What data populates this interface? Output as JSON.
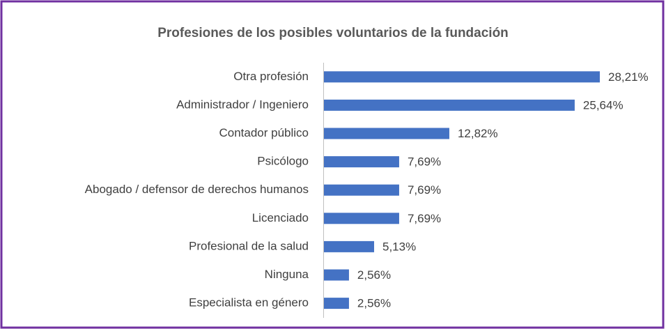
{
  "chart_data": {
    "type": "bar",
    "orientation": "horizontal",
    "title": "Profesiones de los posibles voluntarios de la fundación",
    "categories": [
      "Otra profesión",
      "Administrador / Ingeniero",
      "Contador público",
      "Psicólogo",
      "Abogado / defensor de derechos humanos",
      "Licenciado",
      "Profesional de la salud",
      "Ninguna",
      "Especialista en género"
    ],
    "values": [
      28.21,
      25.64,
      12.82,
      7.69,
      7.69,
      7.69,
      5.13,
      2.56,
      2.56
    ],
    "value_labels": [
      "28,21%",
      "25,64%",
      "12,82%",
      "7,69%",
      "7,69%",
      "7,69%",
      "5,13%",
      "2,56%",
      "2,56%"
    ],
    "color": "#4472c4"
  }
}
